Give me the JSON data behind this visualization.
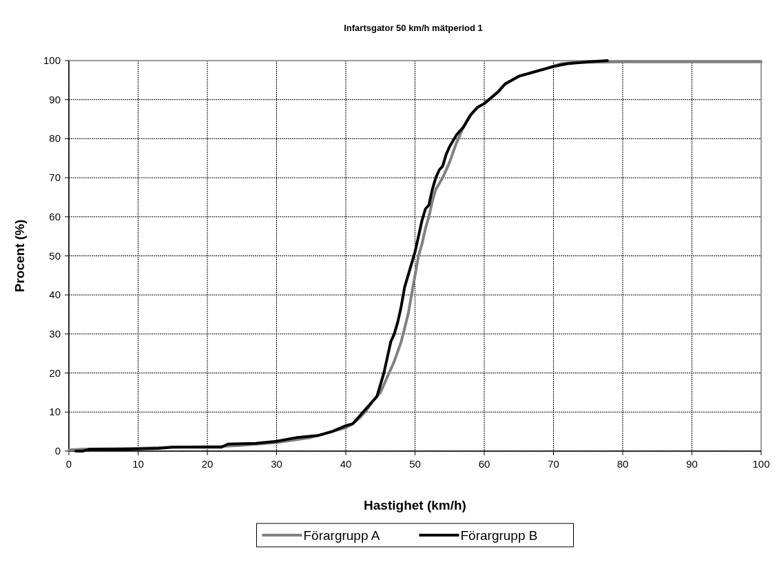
{
  "chart_data": {
    "type": "line",
    "title": "Infartsgator 50 km/h mätperiod 1",
    "xlabel": "Hastighet (km/h)",
    "ylabel": "Procent (%)",
    "xlim": [
      0,
      100
    ],
    "xticks": [
      0,
      10,
      20,
      30,
      40,
      50,
      60,
      70,
      80,
      90,
      100
    ],
    "ylim": [
      0,
      100
    ],
    "yticks": [
      0,
      10,
      20,
      30,
      40,
      50,
      60,
      70,
      80,
      90,
      100
    ],
    "grid": true,
    "legend": "bottom",
    "marker": "none",
    "line_style": "solid",
    "series": [
      {
        "name": "Förargrupp A",
        "color": "#808080",
        "x": [
          0,
          2,
          10,
          15,
          22,
          25,
          30,
          35,
          38,
          40,
          41,
          42,
          43,
          44,
          45,
          46,
          47,
          48,
          49,
          49.5,
          50,
          50.5,
          51,
          51.5,
          52,
          52.5,
          53,
          54,
          55,
          56,
          57,
          58,
          59,
          60,
          61,
          62,
          63,
          65,
          67,
          69,
          71,
          73,
          80,
          100
        ],
        "values": [
          0.3,
          0.5,
          0.7,
          1,
          1.2,
          1.5,
          2.2,
          3.5,
          5,
          6,
          7,
          8.5,
          10.5,
          13,
          15,
          19,
          23,
          28,
          35,
          40,
          45,
          50,
          53,
          57,
          60,
          64,
          67,
          70,
          74,
          79,
          83,
          86,
          88,
          89,
          90.5,
          92,
          94,
          96,
          97,
          98,
          99.2,
          99.5,
          99.7,
          99.7
        ]
      },
      {
        "name": "Förargrupp B",
        "color": "#000000",
        "x": [
          1,
          2,
          3,
          8,
          13,
          15,
          22,
          23,
          27,
          30,
          33,
          36,
          38,
          40,
          41,
          42,
          43,
          44,
          44.5,
          45,
          45.5,
          46,
          46.5,
          47,
          47.5,
          48,
          48.5,
          49,
          49.5,
          50,
          50.5,
          51,
          51.5,
          52,
          52.5,
          53,
          53.5,
          54,
          54.5,
          55,
          56,
          57,
          58,
          59,
          60,
          61,
          62,
          63,
          65,
          67,
          69,
          70,
          72,
          75,
          77.8
        ],
        "values": [
          0,
          0,
          0.5,
          0.5,
          0.7,
          1,
          1,
          1.8,
          2,
          2.5,
          3.5,
          4,
          5,
          6.5,
          7,
          9,
          11,
          13,
          14,
          17,
          20,
          24,
          28,
          30,
          33,
          37,
          42,
          45,
          48,
          51,
          55,
          59,
          62,
          63,
          67,
          70,
          72,
          73,
          76,
          78,
          81,
          83,
          86,
          88,
          89,
          90.5,
          92,
          94,
          96,
          97,
          98,
          98.5,
          99.2,
          99.7,
          100
        ]
      }
    ]
  }
}
